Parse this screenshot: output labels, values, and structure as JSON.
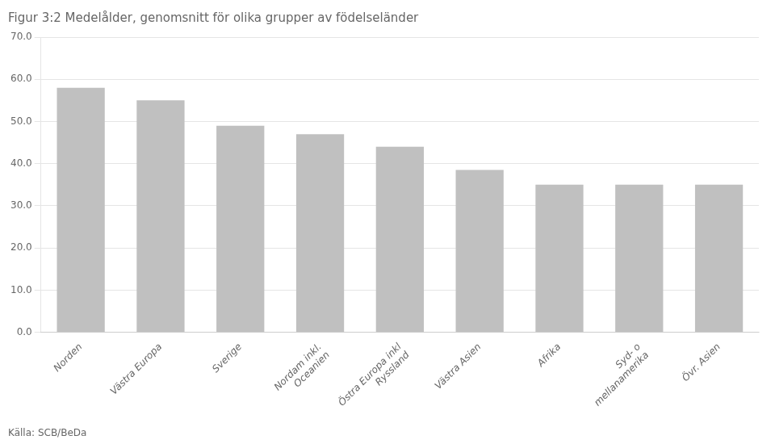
{
  "chart_data": {
    "type": "bar",
    "title": "Figur 3:2 Medelålder, genomsnitt för olika grupper av födelseländer",
    "categories": [
      "Norden",
      "Västra Europa",
      "Sverige",
      "Nordam inkl.\nOceanien",
      "Östra Europa inkl\nRyssland",
      "Västra Asien",
      "Afrika",
      "Syd- o\nmellanamerika",
      "Övr. Asien"
    ],
    "values": [
      58.0,
      55.0,
      49.0,
      47.0,
      44.0,
      38.5,
      35.0,
      35.0,
      35.0
    ],
    "color": "#c0c0c0",
    "ylim": [
      0,
      70
    ],
    "yticks": [
      {
        "value": 0,
        "label": "0.0"
      },
      {
        "value": 10,
        "label": "10.0"
      },
      {
        "value": 20,
        "label": "20.0"
      },
      {
        "value": 30,
        "label": "30.0"
      },
      {
        "value": 40,
        "label": "40.0"
      },
      {
        "value": 50,
        "label": "50.0"
      },
      {
        "value": 60,
        "label": "60.0"
      },
      {
        "value": 70,
        "label": "70.0"
      }
    ],
    "grid": true,
    "annotations": [
      "Källa: SCB/BeDa"
    ]
  }
}
